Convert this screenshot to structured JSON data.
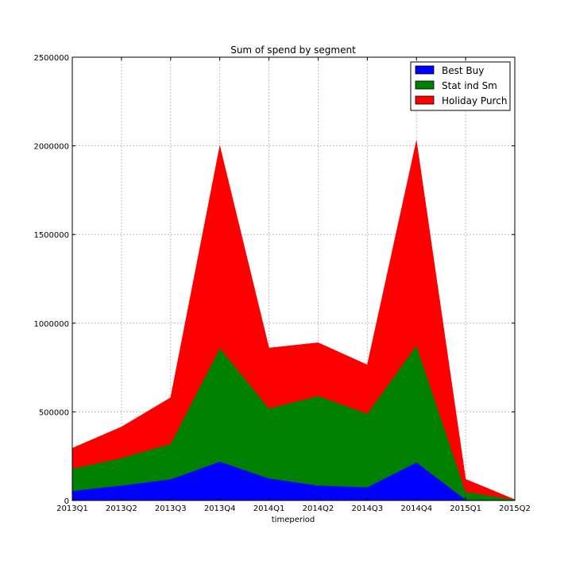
{
  "chart_data": {
    "type": "area",
    "stacked": true,
    "title": "Sum of spend by segment",
    "xlabel": "timeperiod",
    "ylabel": "",
    "categories": [
      "2013Q1",
      "2013Q2",
      "2013Q3",
      "2013Q4",
      "2014Q1",
      "2014Q2",
      "2014Q3",
      "2014Q4",
      "2015Q1",
      "2015Q2"
    ],
    "ylim": [
      0,
      2500000
    ],
    "yticks": [
      0,
      500000,
      1000000,
      1500000,
      2000000,
      2500000
    ],
    "ytick_labels": [
      "0",
      "500000",
      "1000000",
      "1500000",
      "2000000",
      "2500000"
    ],
    "grid": true,
    "legend_position": "top-right",
    "series": [
      {
        "name": "Best Buy",
        "color": "#0000ff",
        "values": [
          55000,
          85000,
          120000,
          220000,
          125000,
          85000,
          75000,
          215000,
          5000,
          0
        ]
      },
      {
        "name": "Stat ind Sm",
        "color": "#008000",
        "values": [
          125000,
          155000,
          200000,
          640000,
          395000,
          505000,
          415000,
          660000,
          45000,
          5000
        ]
      },
      {
        "name": "Holiday Purch",
        "color": "#ff0000",
        "values": [
          115000,
          175000,
          260000,
          1140000,
          340000,
          300000,
          275000,
          1155000,
          70000,
          0
        ]
      }
    ]
  }
}
